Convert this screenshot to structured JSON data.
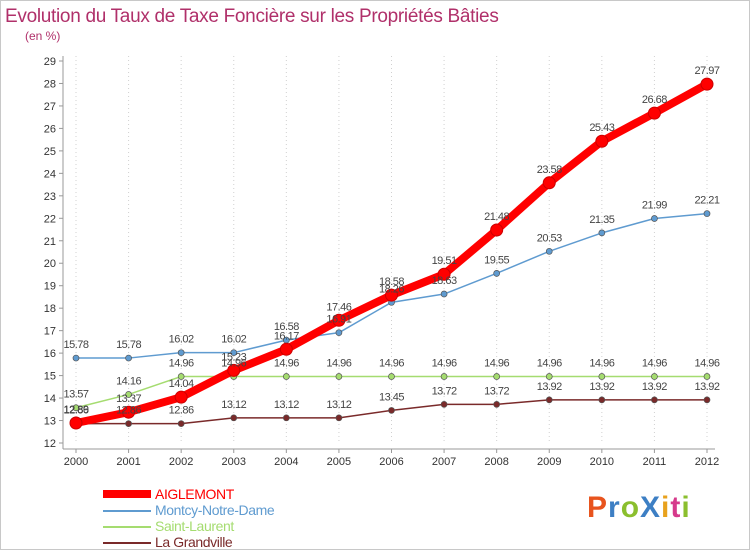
{
  "title": "Evolution du Taux de Taxe Foncière sur les Propriétés Bâties",
  "unit": "(en %)",
  "logo": {
    "text": "ProXiti",
    "colors": [
      "#e8541e",
      "#3d7fc4",
      "#8bbf2e",
      "#3d7fc4",
      "#e8a21e",
      "#d63a8c",
      "#8bbf2e"
    ]
  },
  "chart_data": {
    "type": "line",
    "title": "Evolution du Taux de Taxe Foncière sur les Propriétés Bâties",
    "ylabel": "(en %)",
    "xlabel": "",
    "x": [
      "2000",
      "2001",
      "2002",
      "2003",
      "2004",
      "2005",
      "2006",
      "2007",
      "2008",
      "2009",
      "2010",
      "2011",
      "2012"
    ],
    "ylim": [
      12,
      29
    ],
    "yticks": [
      12,
      13,
      14,
      15,
      16,
      17,
      18,
      19,
      20,
      21,
      22,
      23,
      24,
      25,
      26,
      27,
      28,
      29
    ],
    "grid": "vertical dotted",
    "legend": "bottom-left",
    "series": [
      {
        "name": "AIGLEMONT",
        "color": "#ff0000",
        "width": 8,
        "values": [
          12.89,
          13.37,
          14.04,
          15.23,
          16.17,
          17.46,
          18.58,
          19.51,
          21.48,
          23.58,
          25.43,
          26.68,
          27.97
        ],
        "labels": [
          "12.89",
          "13.37",
          "14.04",
          "15.23",
          "16.17",
          "17.46",
          "18.58",
          "19.51",
          "21.48",
          "23.58",
          "25.43",
          "26.68",
          "27.97"
        ]
      },
      {
        "name": "Montcy-Notre-Dame",
        "color": "#5f9bd0",
        "width": 1.5,
        "values": [
          15.78,
          15.78,
          16.02,
          16.02,
          16.58,
          16.91,
          18.26,
          18.63,
          19.55,
          20.53,
          21.35,
          21.99,
          22.21
        ],
        "labels": [
          "15.78",
          "15.78",
          "16.02",
          "16.02",
          "16.58",
          "16.91",
          "18.26",
          "18.63",
          "19.55",
          "20.53",
          "21.35",
          "21.99",
          "22.21"
        ]
      },
      {
        "name": "Saint-Laurent",
        "color": "#a5dc70",
        "width": 1.5,
        "values": [
          13.57,
          14.16,
          14.96,
          14.96,
          14.96,
          14.96,
          14.96,
          14.96,
          14.96,
          14.96,
          14.96,
          14.96,
          14.96
        ],
        "labels": [
          "13.57",
          "14.16",
          "14.96",
          "14.96",
          "14.96",
          "14.96",
          "14.96",
          "14.96",
          "14.96",
          "14.96",
          "14.96",
          "14.96",
          "14.96"
        ]
      },
      {
        "name": "La Grandville",
        "color": "#7a2a2a",
        "width": 1.5,
        "values": [
          12.86,
          12.86,
          12.86,
          13.12,
          13.12,
          13.12,
          13.45,
          13.72,
          13.72,
          13.92,
          13.92,
          13.92,
          13.92
        ],
        "labels": [
          "12.86",
          "12.86",
          "12.86",
          "13.12",
          "13.12",
          "13.12",
          "13.45",
          "13.72",
          "13.72",
          "13.92",
          "13.92",
          "13.92",
          "13.92"
        ]
      }
    ]
  }
}
